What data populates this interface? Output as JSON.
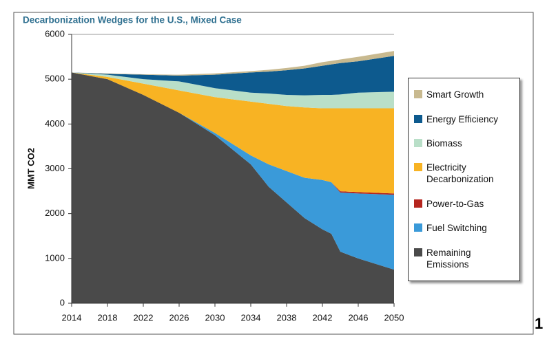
{
  "page_number": "1",
  "chart_data": {
    "type": "stacked_area",
    "title": "Decarbonization Wedges for the U.S., Mixed Case",
    "ylabel": "MMT CO2",
    "x": [
      2014,
      2018,
      2022,
      2026,
      2030,
      2034,
      2036,
      2038,
      2040,
      2042,
      2043,
      2044,
      2046,
      2050
    ],
    "xlim": [
      2014,
      2050
    ],
    "xticks": [
      2014,
      2018,
      2022,
      2026,
      2030,
      2034,
      2038,
      2042,
      2046,
      2050
    ],
    "ylim": [
      0,
      6000
    ],
    "yticks": [
      0,
      1000,
      2000,
      3000,
      4000,
      5000,
      6000
    ],
    "series": [
      {
        "name": "Remaining Emissions",
        "color": "#4a4a4a",
        "values": [
          5150,
          5000,
          4650,
          4250,
          3750,
          3100,
          2600,
          2250,
          1900,
          1650,
          1550,
          1150,
          1000,
          750
        ]
      },
      {
        "name": "Fuel Switching",
        "color": "#3a9ad9",
        "values": [
          0,
          0,
          0,
          0,
          50,
          200,
          500,
          700,
          900,
          1100,
          1150,
          1320,
          1450,
          1670
        ]
      },
      {
        "name": "Power-to-Gas",
        "color": "#b5251e",
        "values": [
          0,
          0,
          0,
          0,
          0,
          0,
          0,
          0,
          0,
          0,
          0,
          30,
          30,
          30
        ]
      },
      {
        "name": "Electricity Decarbonization",
        "color": "#f8b323",
        "values": [
          0,
          50,
          250,
          500,
          800,
          1200,
          1350,
          1450,
          1570,
          1600,
          1650,
          1850,
          1870,
          1900
        ]
      },
      {
        "name": "Biomass",
        "color": "#b9dfc8",
        "values": [
          0,
          50,
          100,
          200,
          200,
          200,
          230,
          250,
          270,
          300,
          300,
          310,
          350,
          370
        ]
      },
      {
        "name": "Energy Efficiency",
        "color": "#0d5a8e",
        "values": [
          0,
          20,
          100,
          130,
          300,
          450,
          490,
          550,
          600,
          650,
          680,
          700,
          700,
          800
        ]
      },
      {
        "name": "Smart Growth",
        "color": "#c8b98f",
        "values": [
          0,
          10,
          10,
          20,
          30,
          30,
          40,
          50,
          60,
          80,
          80,
          80,
          100,
          110
        ]
      }
    ]
  }
}
